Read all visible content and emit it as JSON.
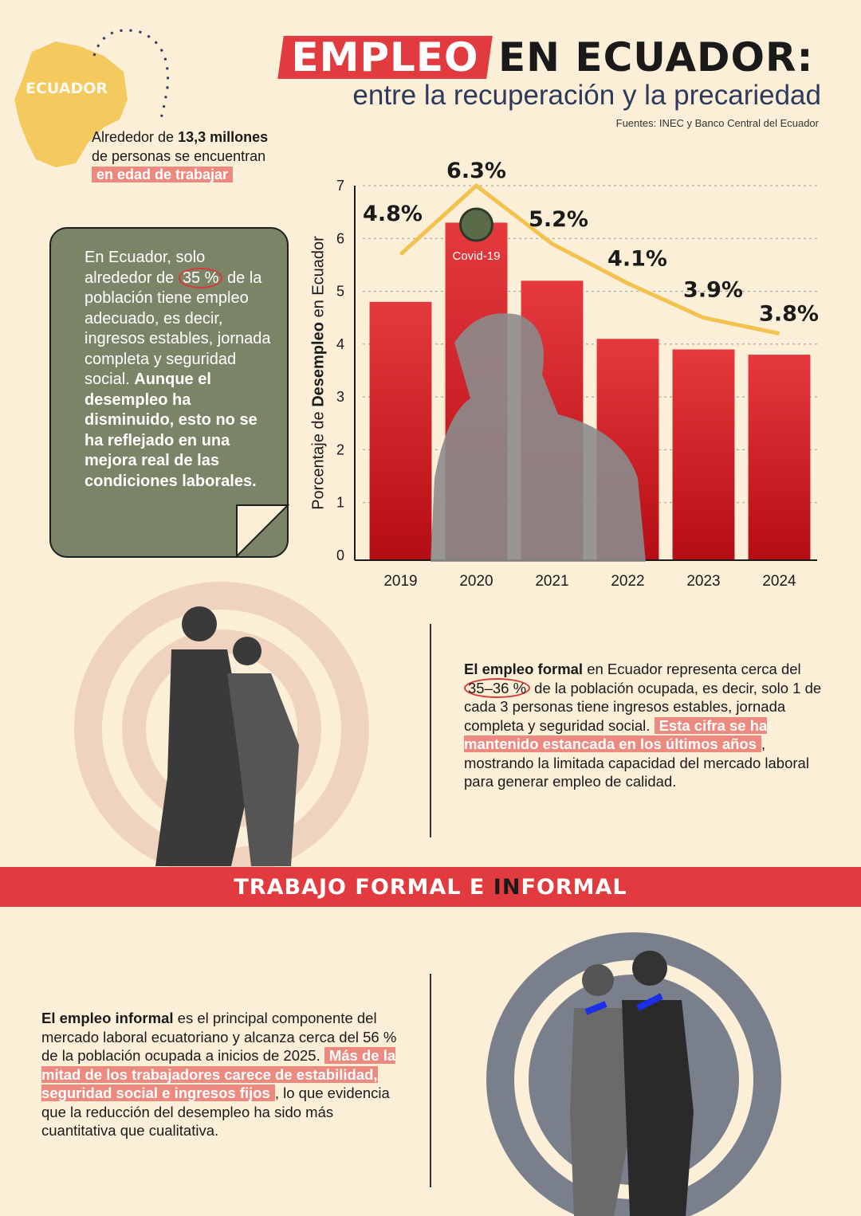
{
  "header": {
    "title_highlight": "EMPLEO",
    "title_rest": "EN ECUADOR:",
    "subtitle": "entre la recuperación y la precariedad",
    "sources": "Fuentes: INEC y Banco Central del Ecuador"
  },
  "map": {
    "label": "ECUADOR",
    "color": "#f4c95d"
  },
  "intro": {
    "pre": "Alrededor de ",
    "bold": "13,3 millones",
    "mid": "de personas se encuentran",
    "highlight": "en edad de trabajar"
  },
  "card": {
    "t1": "En Ecuador, solo alrededor de ",
    "circled": "35 %",
    "t2": " de la población tiene empleo adecuado, es decir, ingresos estables, jornada completa y seguridad social. ",
    "bold": "Aunque el desempleo ha disminuido, esto no se ha reflejado en una mejora real de las condiciones laborales."
  },
  "chart_data": {
    "type": "bar",
    "ylabel_pre": "Porcentaje de ",
    "ylabel_bold": "Desempleo",
    "ylabel_post": " en Ecuador",
    "categories": [
      "2019",
      "2020",
      "2021",
      "2022",
      "2023",
      "2024"
    ],
    "values": [
      4.8,
      6.3,
      5.2,
      4.1,
      3.9,
      3.8
    ],
    "data_labels": [
      "4.8%",
      "6.3%",
      "5.2%",
      "4.1%",
      "3.9%",
      "3.8%"
    ],
    "line_values": [
      5.7,
      7.0,
      5.9,
      5.15,
      4.5,
      4.2
    ],
    "ylim": [
      0,
      7
    ],
    "yticks": [
      0,
      1,
      2,
      3,
      4,
      5,
      6,
      7
    ],
    "grid": "dashed horizontal",
    "annotation": "Covid-19",
    "bar_color": "#e23b3f",
    "line_color": "#f2c14e"
  },
  "formal": {
    "bold": "El empleo formal",
    "t1": " en Ecuador representa cerca del ",
    "circled": "35–36 %",
    "t2": " de la población ocupada, es decir, solo 1 de cada 3 personas tiene ingresos estables, jornada completa y seguridad social.",
    "highlight": "Esta cifra se ha mantenido estancada en los últimos años",
    "t3": ", mostrando la limitada capacidad del mercado laboral para generar empleo de calidad."
  },
  "band": {
    "pre": "TRABAJO FORMAL E ",
    "dark": "IN",
    "post": "FORMAL"
  },
  "informal": {
    "bold": "El empleo informal",
    "t1": " es el principal componente del mercado laboral ecuatoriano y alcanza cerca del 56 % de la población ocupada a inicios de 2025.",
    "highlight": "Más de la mitad de los trabajadores carece de estabilidad, seguridad social e ingresos fijos",
    "t2": ", lo que evidencia que la reducción del desempleo ha sido más cuantitativa que cualitativa."
  }
}
